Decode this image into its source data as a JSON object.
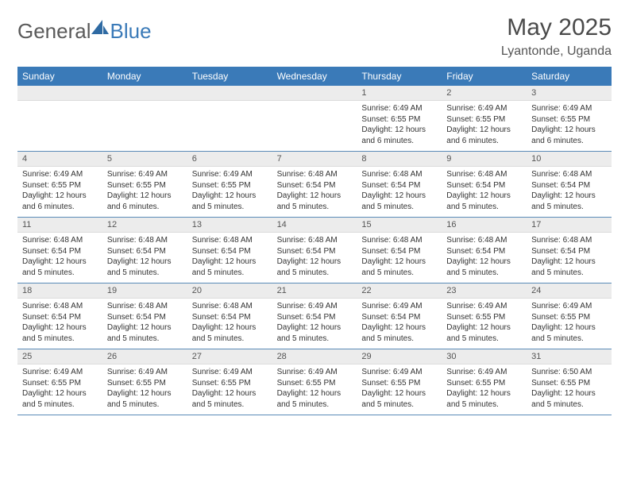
{
  "logo": {
    "word1": "General",
    "word2": "Blue"
  },
  "title": "May 2025",
  "subtitle": "Lyantonde, Uganda",
  "header_bg": "#3a7ab8",
  "days": [
    "Sunday",
    "Monday",
    "Tuesday",
    "Wednesday",
    "Thursday",
    "Friday",
    "Saturday"
  ],
  "weeks": [
    [
      {
        "date": "",
        "sunrise": "",
        "sunset": "",
        "daylight": ""
      },
      {
        "date": "",
        "sunrise": "",
        "sunset": "",
        "daylight": ""
      },
      {
        "date": "",
        "sunrise": "",
        "sunset": "",
        "daylight": ""
      },
      {
        "date": "",
        "sunrise": "",
        "sunset": "",
        "daylight": ""
      },
      {
        "date": "1",
        "sunrise": "Sunrise: 6:49 AM",
        "sunset": "Sunset: 6:55 PM",
        "daylight": "Daylight: 12 hours and 6 minutes."
      },
      {
        "date": "2",
        "sunrise": "Sunrise: 6:49 AM",
        "sunset": "Sunset: 6:55 PM",
        "daylight": "Daylight: 12 hours and 6 minutes."
      },
      {
        "date": "3",
        "sunrise": "Sunrise: 6:49 AM",
        "sunset": "Sunset: 6:55 PM",
        "daylight": "Daylight: 12 hours and 6 minutes."
      }
    ],
    [
      {
        "date": "4",
        "sunrise": "Sunrise: 6:49 AM",
        "sunset": "Sunset: 6:55 PM",
        "daylight": "Daylight: 12 hours and 6 minutes."
      },
      {
        "date": "5",
        "sunrise": "Sunrise: 6:49 AM",
        "sunset": "Sunset: 6:55 PM",
        "daylight": "Daylight: 12 hours and 6 minutes."
      },
      {
        "date": "6",
        "sunrise": "Sunrise: 6:49 AM",
        "sunset": "Sunset: 6:55 PM",
        "daylight": "Daylight: 12 hours and 5 minutes."
      },
      {
        "date": "7",
        "sunrise": "Sunrise: 6:48 AM",
        "sunset": "Sunset: 6:54 PM",
        "daylight": "Daylight: 12 hours and 5 minutes."
      },
      {
        "date": "8",
        "sunrise": "Sunrise: 6:48 AM",
        "sunset": "Sunset: 6:54 PM",
        "daylight": "Daylight: 12 hours and 5 minutes."
      },
      {
        "date": "9",
        "sunrise": "Sunrise: 6:48 AM",
        "sunset": "Sunset: 6:54 PM",
        "daylight": "Daylight: 12 hours and 5 minutes."
      },
      {
        "date": "10",
        "sunrise": "Sunrise: 6:48 AM",
        "sunset": "Sunset: 6:54 PM",
        "daylight": "Daylight: 12 hours and 5 minutes."
      }
    ],
    [
      {
        "date": "11",
        "sunrise": "Sunrise: 6:48 AM",
        "sunset": "Sunset: 6:54 PM",
        "daylight": "Daylight: 12 hours and 5 minutes."
      },
      {
        "date": "12",
        "sunrise": "Sunrise: 6:48 AM",
        "sunset": "Sunset: 6:54 PM",
        "daylight": "Daylight: 12 hours and 5 minutes."
      },
      {
        "date": "13",
        "sunrise": "Sunrise: 6:48 AM",
        "sunset": "Sunset: 6:54 PM",
        "daylight": "Daylight: 12 hours and 5 minutes."
      },
      {
        "date": "14",
        "sunrise": "Sunrise: 6:48 AM",
        "sunset": "Sunset: 6:54 PM",
        "daylight": "Daylight: 12 hours and 5 minutes."
      },
      {
        "date": "15",
        "sunrise": "Sunrise: 6:48 AM",
        "sunset": "Sunset: 6:54 PM",
        "daylight": "Daylight: 12 hours and 5 minutes."
      },
      {
        "date": "16",
        "sunrise": "Sunrise: 6:48 AM",
        "sunset": "Sunset: 6:54 PM",
        "daylight": "Daylight: 12 hours and 5 minutes."
      },
      {
        "date": "17",
        "sunrise": "Sunrise: 6:48 AM",
        "sunset": "Sunset: 6:54 PM",
        "daylight": "Daylight: 12 hours and 5 minutes."
      }
    ],
    [
      {
        "date": "18",
        "sunrise": "Sunrise: 6:48 AM",
        "sunset": "Sunset: 6:54 PM",
        "daylight": "Daylight: 12 hours and 5 minutes."
      },
      {
        "date": "19",
        "sunrise": "Sunrise: 6:48 AM",
        "sunset": "Sunset: 6:54 PM",
        "daylight": "Daylight: 12 hours and 5 minutes."
      },
      {
        "date": "20",
        "sunrise": "Sunrise: 6:48 AM",
        "sunset": "Sunset: 6:54 PM",
        "daylight": "Daylight: 12 hours and 5 minutes."
      },
      {
        "date": "21",
        "sunrise": "Sunrise: 6:49 AM",
        "sunset": "Sunset: 6:54 PM",
        "daylight": "Daylight: 12 hours and 5 minutes."
      },
      {
        "date": "22",
        "sunrise": "Sunrise: 6:49 AM",
        "sunset": "Sunset: 6:54 PM",
        "daylight": "Daylight: 12 hours and 5 minutes."
      },
      {
        "date": "23",
        "sunrise": "Sunrise: 6:49 AM",
        "sunset": "Sunset: 6:55 PM",
        "daylight": "Daylight: 12 hours and 5 minutes."
      },
      {
        "date": "24",
        "sunrise": "Sunrise: 6:49 AM",
        "sunset": "Sunset: 6:55 PM",
        "daylight": "Daylight: 12 hours and 5 minutes."
      }
    ],
    [
      {
        "date": "25",
        "sunrise": "Sunrise: 6:49 AM",
        "sunset": "Sunset: 6:55 PM",
        "daylight": "Daylight: 12 hours and 5 minutes."
      },
      {
        "date": "26",
        "sunrise": "Sunrise: 6:49 AM",
        "sunset": "Sunset: 6:55 PM",
        "daylight": "Daylight: 12 hours and 5 minutes."
      },
      {
        "date": "27",
        "sunrise": "Sunrise: 6:49 AM",
        "sunset": "Sunset: 6:55 PM",
        "daylight": "Daylight: 12 hours and 5 minutes."
      },
      {
        "date": "28",
        "sunrise": "Sunrise: 6:49 AM",
        "sunset": "Sunset: 6:55 PM",
        "daylight": "Daylight: 12 hours and 5 minutes."
      },
      {
        "date": "29",
        "sunrise": "Sunrise: 6:49 AM",
        "sunset": "Sunset: 6:55 PM",
        "daylight": "Daylight: 12 hours and 5 minutes."
      },
      {
        "date": "30",
        "sunrise": "Sunrise: 6:49 AM",
        "sunset": "Sunset: 6:55 PM",
        "daylight": "Daylight: 12 hours and 5 minutes."
      },
      {
        "date": "31",
        "sunrise": "Sunrise: 6:50 AM",
        "sunset": "Sunset: 6:55 PM",
        "daylight": "Daylight: 12 hours and 5 minutes."
      }
    ]
  ]
}
